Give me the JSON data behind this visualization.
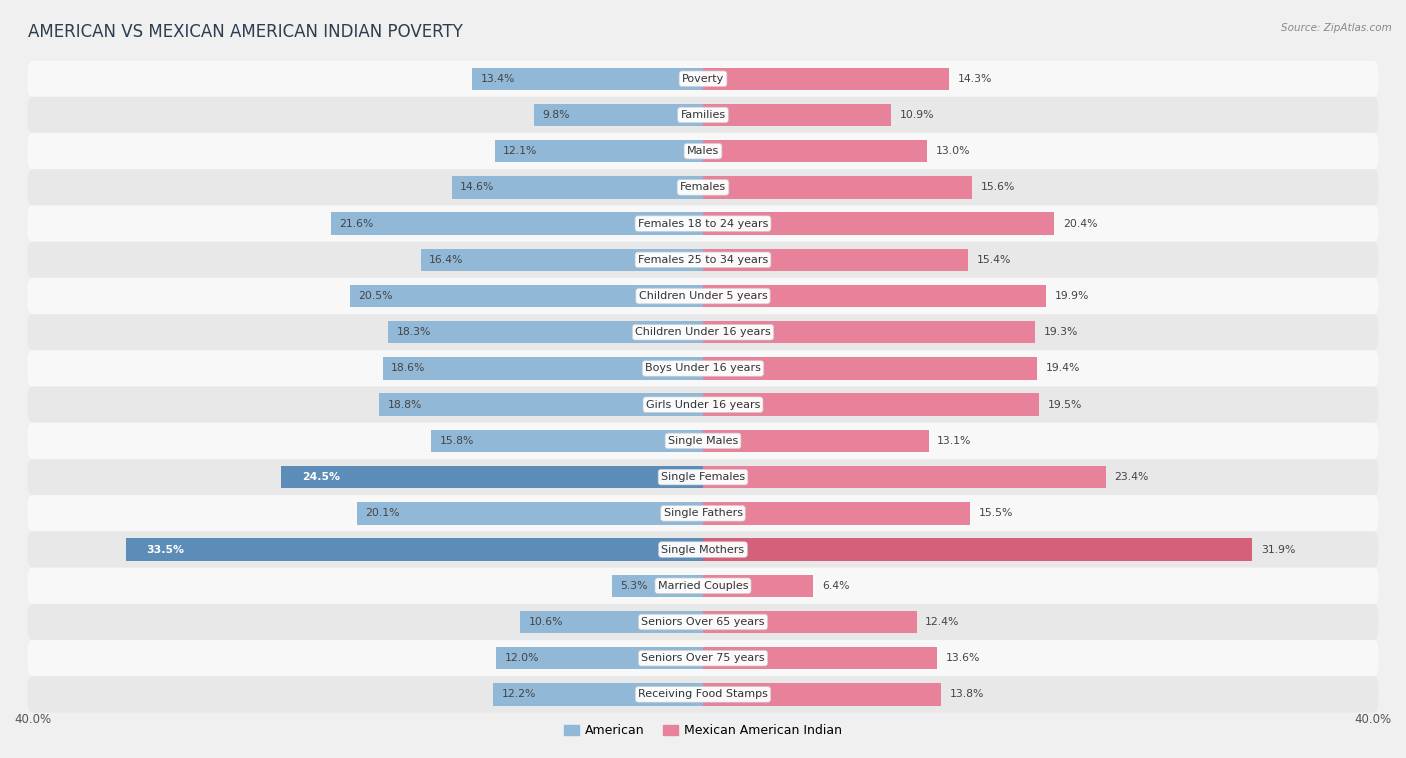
{
  "title": "AMERICAN VS MEXICAN AMERICAN INDIAN POVERTY",
  "source": "Source: ZipAtlas.com",
  "categories": [
    "Poverty",
    "Families",
    "Males",
    "Females",
    "Females 18 to 24 years",
    "Females 25 to 34 years",
    "Children Under 5 years",
    "Children Under 16 years",
    "Boys Under 16 years",
    "Girls Under 16 years",
    "Single Males",
    "Single Females",
    "Single Fathers",
    "Single Mothers",
    "Married Couples",
    "Seniors Over 65 years",
    "Seniors Over 75 years",
    "Receiving Food Stamps"
  ],
  "american_values": [
    13.4,
    9.8,
    12.1,
    14.6,
    21.6,
    16.4,
    20.5,
    18.3,
    18.6,
    18.8,
    15.8,
    24.5,
    20.1,
    33.5,
    5.3,
    10.6,
    12.0,
    12.2
  ],
  "mexican_values": [
    14.3,
    10.9,
    13.0,
    15.6,
    20.4,
    15.4,
    19.9,
    19.3,
    19.4,
    19.5,
    13.1,
    23.4,
    15.5,
    31.9,
    6.4,
    12.4,
    13.6,
    13.8
  ],
  "american_color": "#92b8d8",
  "mexican_color": "#e8829a",
  "highlight_american": [
    11,
    13
  ],
  "highlight_american_color": "#5b8db8",
  "highlight_mexican": [
    13
  ],
  "highlight_mexican_color": "#d4607a",
  "background_color": "#f0f0f0",
  "row_color_even": "#f8f8f8",
  "row_color_odd": "#e8e8e8",
  "xlim": 40.0,
  "bar_height": 0.62,
  "title_fontsize": 12,
  "label_fontsize": 8.0,
  "value_fontsize": 7.8
}
